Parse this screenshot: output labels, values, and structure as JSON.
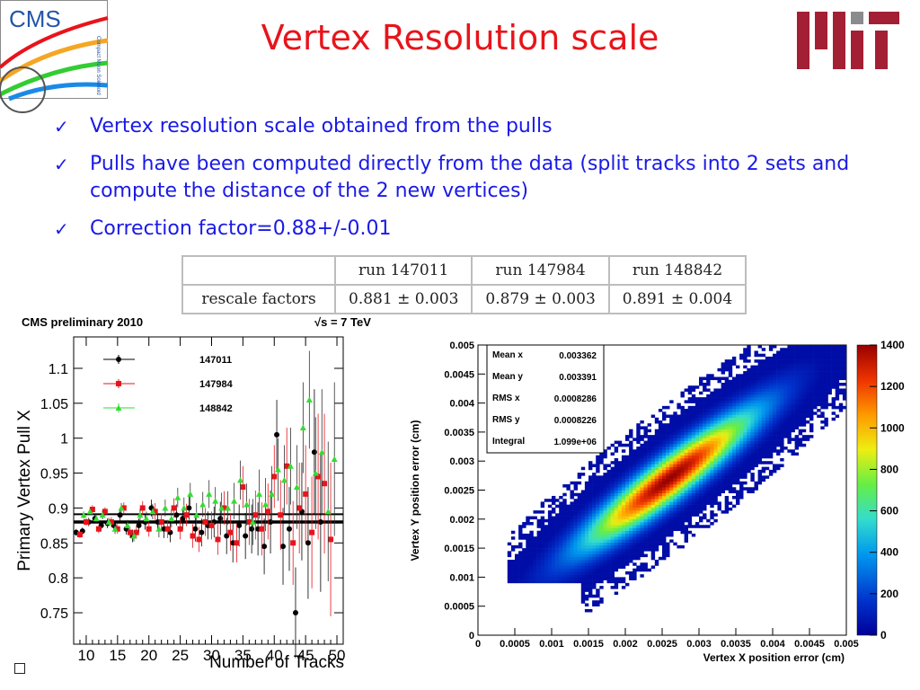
{
  "slide": {
    "title": "Vertex Resolution scale",
    "bullets": [
      "Vertex resolution scale obtained from the pulls",
      "Pulls have been computed directly from the data (split tracks into 2 sets and compute the distance of the 2 new vertices)",
      "Correction factor=0.88+/-0.01"
    ],
    "logos": {
      "left": "CMS",
      "left_caption": "Compact Muon Solenoid",
      "right": "MIT"
    },
    "colors": {
      "title": "#e8141b",
      "bullets": "#1a1ae6",
      "mit_red": "#a31f34",
      "mit_gray": "#8a8b8c"
    }
  },
  "rescale_table": {
    "columns": [
      "",
      "run 147011",
      "run 147984",
      "run 148842"
    ],
    "rows": [
      {
        "label": "rescale factors",
        "values": [
          "0.881 ± 0.003",
          "0.879 ± 0.003",
          "0.891 ± 0.004"
        ]
      }
    ]
  },
  "chart_data": [
    {
      "type": "scatter",
      "title": "CMS preliminary 2010",
      "annotation": "√s = 7 TeV",
      "xlabel": "Number of Tracks",
      "ylabel": "Primary Vertex Pull X",
      "xlim": [
        8,
        51
      ],
      "ylim": [
        0.705,
        1.145
      ],
      "xticks": [
        10,
        15,
        20,
        25,
        30,
        35,
        40,
        45,
        50
      ],
      "yticks": [
        0.75,
        0.8,
        0.85,
        0.9,
        0.95,
        1,
        1.05,
        1.1
      ],
      "ytick_labels": [
        "0.75",
        "0.8",
        "0.85",
        "0.9",
        "0.95",
        "1",
        "1.05",
        "1.1"
      ],
      "legend_position": "top-left",
      "fit_lines": [
        0.881,
        0.879,
        0.891
      ],
      "series": [
        {
          "name": "147011",
          "color": "#000000",
          "marker": "circle",
          "x": [
            9,
            10,
            11,
            12,
            13,
            14,
            15,
            16,
            17,
            18,
            19,
            20,
            21,
            22,
            23,
            24,
            25,
            26,
            27,
            28,
            29,
            30,
            31,
            32,
            33,
            34,
            35,
            36,
            37,
            38,
            39,
            40,
            41,
            42,
            43,
            44,
            45,
            46,
            47,
            48
          ],
          "y": [
            0.865,
            0.867,
            0.88,
            0.885,
            0.875,
            0.878,
            0.875,
            0.89,
            0.87,
            0.86,
            0.875,
            0.88,
            0.9,
            0.88,
            0.87,
            0.865,
            0.89,
            0.885,
            0.9,
            0.87,
            0.865,
            0.875,
            0.88,
            0.885,
            0.86,
            0.85,
            0.875,
            0.86,
            0.87,
            0.87,
            0.845,
            0.88,
            1.005,
            0.845,
            0.87,
            0.75,
            0.895,
            0.85,
            0.98,
            0.88
          ],
          "err": [
            0.005,
            0.005,
            0.006,
            0.006,
            0.006,
            0.007,
            0.007,
            0.008,
            0.008,
            0.009,
            0.01,
            0.011,
            0.012,
            0.012,
            0.013,
            0.014,
            0.015,
            0.016,
            0.017,
            0.018,
            0.02,
            0.02,
            0.022,
            0.024,
            0.026,
            0.028,
            0.03,
            0.033,
            0.035,
            0.038,
            0.04,
            0.045,
            0.05,
            0.055,
            0.06,
            0.065,
            0.07,
            0.08,
            0.09,
            0.1
          ]
        },
        {
          "name": "147984",
          "color": "#e8141b",
          "marker": "square",
          "x": [
            9,
            10,
            11,
            12,
            13,
            14,
            15,
            16,
            17,
            18,
            19,
            20,
            21,
            22,
            23,
            24,
            25,
            26,
            27,
            28,
            29,
            30,
            31,
            32,
            33,
            34,
            35,
            36,
            37,
            38,
            39,
            40,
            41,
            42,
            43,
            44,
            45,
            46,
            47,
            48,
            49
          ],
          "y": [
            0.862,
            0.88,
            0.898,
            0.87,
            0.895,
            0.88,
            0.87,
            0.9,
            0.865,
            0.865,
            0.9,
            0.87,
            0.895,
            0.88,
            0.87,
            0.9,
            0.87,
            0.89,
            0.86,
            0.855,
            0.88,
            0.875,
            0.855,
            0.9,
            0.865,
            0.85,
            0.93,
            0.88,
            0.89,
            0.87,
            0.895,
            0.945,
            0.89,
            0.96,
            0.85,
            0.9,
            0.92,
            0.865,
            0.945,
            0.935,
            0.855
          ],
          "err": [
            0.005,
            0.005,
            0.006,
            0.006,
            0.006,
            0.007,
            0.007,
            0.008,
            0.008,
            0.009,
            0.01,
            0.011,
            0.012,
            0.012,
            0.013,
            0.014,
            0.015,
            0.016,
            0.017,
            0.018,
            0.02,
            0.02,
            0.022,
            0.024,
            0.026,
            0.028,
            0.03,
            0.033,
            0.035,
            0.038,
            0.04,
            0.045,
            0.05,
            0.055,
            0.06,
            0.065,
            0.07,
            0.08,
            0.09,
            0.1,
            0.11
          ]
        },
        {
          "name": "148842",
          "color": "#33dd33",
          "marker": "triangle",
          "x": [
            9,
            10,
            11,
            12,
            13,
            14,
            15,
            16,
            17,
            18,
            19,
            20,
            21,
            22,
            23,
            24,
            25,
            26,
            27,
            28,
            29,
            30,
            31,
            32,
            33,
            34,
            35,
            36,
            37,
            38,
            39,
            40,
            41,
            42,
            43,
            44,
            45,
            46,
            47,
            48,
            49
          ],
          "y": [
            0.89,
            0.895,
            0.885,
            0.89,
            0.88,
            0.87,
            0.9,
            0.875,
            0.86,
            0.89,
            0.885,
            0.895,
            0.87,
            0.9,
            0.885,
            0.915,
            0.9,
            0.92,
            0.89,
            0.905,
            0.92,
            0.91,
            0.9,
            0.9,
            0.91,
            0.94,
            0.905,
            0.88,
            0.92,
            0.905,
            0.92,
            0.955,
            0.94,
            0.96,
            0.93,
            1.015,
            1.055,
            0.95,
            0.98,
            0.895,
            0.97
          ],
          "err": [
            0.005,
            0.005,
            0.006,
            0.006,
            0.006,
            0.007,
            0.007,
            0.008,
            0.008,
            0.009,
            0.01,
            0.011,
            0.012,
            0.012,
            0.013,
            0.014,
            0.015,
            0.016,
            0.017,
            0.018,
            0.02,
            0.02,
            0.022,
            0.024,
            0.026,
            0.028,
            0.03,
            0.033,
            0.035,
            0.038,
            0.04,
            0.045,
            0.05,
            0.055,
            0.06,
            0.065,
            0.07,
            0.08,
            0.09,
            0.1,
            0.11
          ]
        }
      ]
    },
    {
      "type": "heatmap",
      "xlabel": "Vertex X position error (cm)",
      "ylabel": "Vertex Y position error (cm)",
      "xlim": [
        0,
        0.005
      ],
      "ylim": [
        0,
        0.005
      ],
      "xtick_labels": [
        "0",
        "0.0005",
        "0.001",
        "0.0015",
        "0.002",
        "0.0025",
        "0.003",
        "0.0035",
        "0.004",
        "0.0045",
        "0.005"
      ],
      "ytick_labels": [
        "0",
        "0.0005",
        "0.001",
        "0.0015",
        "0.002",
        "0.0025",
        "0.003",
        "0.0035",
        "0.004",
        "0.0045",
        "0.005"
      ],
      "zlim": [
        0,
        1400
      ],
      "ztick_labels": [
        "0",
        "200",
        "400",
        "600",
        "800",
        "1000",
        "1200",
        "1400"
      ],
      "stats": [
        {
          "label": "Mean x",
          "value": "0.003362"
        },
        {
          "label": "Mean y",
          "value": "0.003391"
        },
        {
          "label": "RMS x",
          "value": "0.0008286"
        },
        {
          "label": "RMS y",
          "value": "0.0008226"
        },
        {
          "label": "Integral",
          "value": "1.099e+06"
        }
      ],
      "peak": {
        "x": 0.0026,
        "y": 0.0027,
        "value": 1400
      },
      "correlation": 0.93
    }
  ]
}
